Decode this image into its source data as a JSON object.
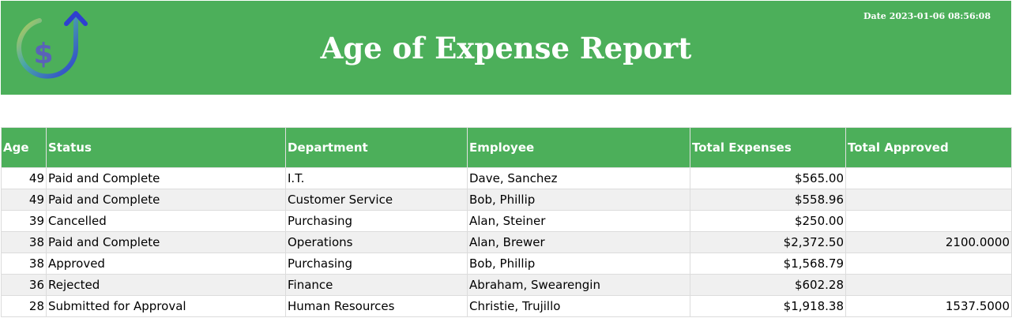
{
  "header": {
    "title": "Age of Expense Report",
    "date_label": "Date",
    "date_value": "2023-01-06 08:56:08",
    "logo_icon": "dollar-circle-arrow-icon",
    "background_color": "#4caf5a"
  },
  "table": {
    "columns": [
      "Age",
      "Status",
      "Department",
      "Employee",
      "Total Expenses",
      "Total Approved"
    ],
    "rows": [
      {
        "age": "49",
        "status": "Paid and Complete",
        "department": "I.T.",
        "employee": "Dave, Sanchez",
        "total_expenses": "$565.00",
        "total_approved": ""
      },
      {
        "age": "49",
        "status": "Paid and Complete",
        "department": "Customer Service",
        "employee": "Bob, Phillip",
        "total_expenses": "$558.96",
        "total_approved": ""
      },
      {
        "age": "39",
        "status": "Cancelled",
        "department": "Purchasing",
        "employee": "Alan, Steiner",
        "total_expenses": "$250.00",
        "total_approved": ""
      },
      {
        "age": "38",
        "status": "Paid and Complete",
        "department": "Operations",
        "employee": "Alan, Brewer",
        "total_expenses": "$2,372.50",
        "total_approved": "2100.0000"
      },
      {
        "age": "38",
        "status": "Approved",
        "department": "Purchasing",
        "employee": "Bob, Phillip",
        "total_expenses": "$1,568.79",
        "total_approved": ""
      },
      {
        "age": "36",
        "status": "Rejected",
        "department": "Finance",
        "employee": "Abraham, Swearengin",
        "total_expenses": "$602.28",
        "total_approved": ""
      },
      {
        "age": "28",
        "status": "Submitted for Approval",
        "department": "Human Resources",
        "employee": "Christie, Trujillo",
        "total_expenses": "$1,918.38",
        "total_approved": "1537.5000"
      }
    ]
  }
}
